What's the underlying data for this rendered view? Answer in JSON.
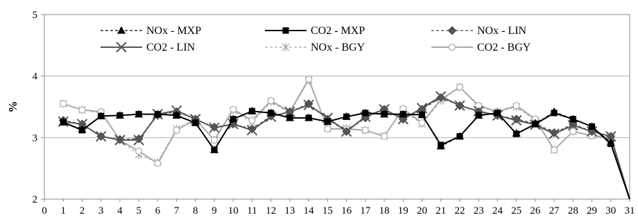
{
  "chart_data": {
    "type": "line",
    "ylabel": "%",
    "x": [
      1,
      2,
      3,
      4,
      5,
      6,
      7,
      8,
      9,
      10,
      11,
      12,
      13,
      14,
      15,
      16,
      17,
      18,
      19,
      20,
      21,
      22,
      23,
      24,
      25,
      26,
      27,
      28,
      29,
      30,
      31
    ],
    "xlim": [
      0,
      31
    ],
    "ylim": [
      2,
      5
    ],
    "x_ticks": [
      "0",
      "1",
      "2",
      "3",
      "4",
      "5",
      "6",
      "7",
      "8",
      "9",
      "10",
      "11",
      "12",
      "13",
      "14",
      "15",
      "16",
      "17",
      "18",
      "19",
      "20",
      "21",
      "22",
      "23",
      "24",
      "25",
      "26",
      "27",
      "28",
      "29",
      "30",
      "31"
    ],
    "y_ticks": [
      "2",
      "3",
      "4",
      "5"
    ],
    "grid": "horizontal",
    "legend_position": "top",
    "series": [
      {
        "name": "NOx - MXP",
        "color": "#000000",
        "dash": "4,3",
        "width": 1.3,
        "marker": "triangle",
        "marker_fill": "#000000",
        "values": [
          3.25,
          3.13,
          3.35,
          3.36,
          3.38,
          3.38,
          3.36,
          3.24,
          2.8,
          3.3,
          3.43,
          3.4,
          3.32,
          3.32,
          3.26,
          3.34,
          3.4,
          3.38,
          3.38,
          3.37,
          2.86,
          3.02,
          3.36,
          3.4,
          3.07,
          3.22,
          3.42,
          3.3,
          3.18,
          2.92,
          1.95
        ]
      },
      {
        "name": "CO2 - MXP",
        "color": "#000000",
        "dash": "",
        "width": 2,
        "marker": "square",
        "marker_fill": "#000000",
        "values": [
          3.25,
          3.12,
          3.35,
          3.36,
          3.38,
          3.38,
          3.36,
          3.24,
          2.8,
          3.3,
          3.43,
          3.4,
          3.32,
          3.32,
          3.26,
          3.34,
          3.4,
          3.38,
          3.38,
          3.37,
          2.88,
          3.02,
          3.36,
          3.4,
          3.06,
          3.22,
          3.4,
          3.3,
          3.18,
          2.9,
          1.93
        ]
      },
      {
        "name": "NOx - LIN",
        "color": "#444444",
        "dash": "4,3",
        "width": 1.3,
        "marker": "diamond",
        "marker_fill": "#555555",
        "values": [
          3.28,
          3.22,
          3.02,
          2.97,
          2.98,
          3.36,
          3.42,
          3.3,
          3.17,
          3.22,
          3.14,
          3.35,
          3.42,
          3.55,
          3.3,
          3.1,
          3.32,
          3.46,
          3.3,
          3.46,
          3.65,
          3.52,
          3.42,
          3.36,
          3.3,
          3.23,
          3.08,
          3.22,
          3.1,
          3.02,
          1.97
        ]
      },
      {
        "name": "CO2 - LIN",
        "color": "#555555",
        "dash": "",
        "width": 2,
        "marker": "x",
        "marker_fill": "#555555",
        "values": [
          3.26,
          3.22,
          3.02,
          2.96,
          2.96,
          3.38,
          3.44,
          3.3,
          3.16,
          3.22,
          3.12,
          3.34,
          3.42,
          3.53,
          3.32,
          3.1,
          3.34,
          3.46,
          3.3,
          3.48,
          3.67,
          3.52,
          3.43,
          3.36,
          3.28,
          3.21,
          3.06,
          3.2,
          3.1,
          3.02,
          1.96
        ]
      },
      {
        "name": "NOx - BGY",
        "color": "#aaaaaa",
        "dash": "4,3",
        "width": 1.3,
        "marker": "asterisk",
        "marker_fill": "#aaaaaa",
        "values": [
          3.55,
          3.45,
          3.4,
          2.96,
          2.72,
          2.6,
          3.14,
          3.3,
          2.96,
          3.44,
          3.25,
          3.58,
          3.4,
          3.93,
          3.15,
          3.15,
          3.12,
          3.03,
          3.45,
          3.22,
          3.6,
          3.82,
          3.5,
          3.42,
          3.5,
          3.28,
          2.8,
          3.1,
          3.04,
          3.0,
          1.98
        ]
      },
      {
        "name": "CO2 - BGY",
        "color": "#aaaaaa",
        "dash": "",
        "width": 2,
        "marker": "circle",
        "marker_fill": "#ffffff",
        "values": [
          3.55,
          3.45,
          3.42,
          2.96,
          2.78,
          2.58,
          3.12,
          3.3,
          2.96,
          3.46,
          3.28,
          3.6,
          3.42,
          3.95,
          3.14,
          3.14,
          3.12,
          3.02,
          3.47,
          3.24,
          3.62,
          3.82,
          3.52,
          3.42,
          3.52,
          3.3,
          2.8,
          3.1,
          3.03,
          3.0,
          1.98
        ]
      }
    ]
  }
}
